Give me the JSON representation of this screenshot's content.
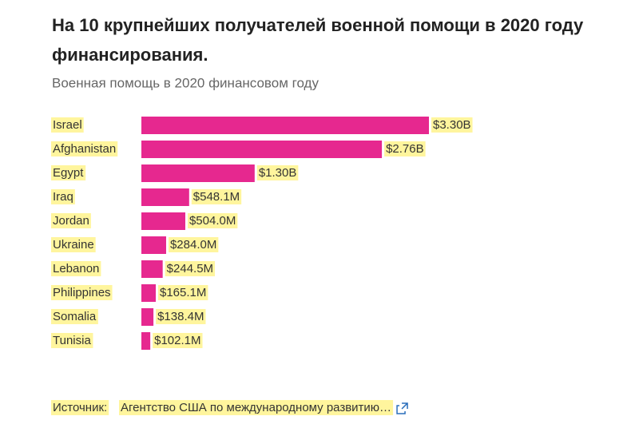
{
  "chart_data": {
    "type": "hbar",
    "title": [
      "На 10 крупнейших получателей военной помощи в 2020 году",
      "финансирования."
    ],
    "subtitle": "Военная помощь в 2020 финансовом году",
    "categories": [
      "Israel",
      "Afghanistan",
      "Egypt",
      "Iraq",
      "Jordan",
      "Ukraine",
      "Lebanon",
      "Philippines",
      "Somalia",
      "Tunisia"
    ],
    "values": [
      3300000000,
      2760000000,
      1300000000,
      548100000,
      504000000,
      284000000,
      244500000,
      165100000,
      138400000,
      102100000
    ],
    "value_labels": [
      "$3.30B",
      "$2.76B",
      "$1.30B",
      "$548.1M",
      "$504.0M",
      "$284.0M",
      "$244.5M",
      "$165.1M",
      "$138.4M",
      "$102.1M"
    ],
    "color": "#e6288f",
    "source_label": "Источник:",
    "source": "Агентство США по международному развитию…"
  }
}
